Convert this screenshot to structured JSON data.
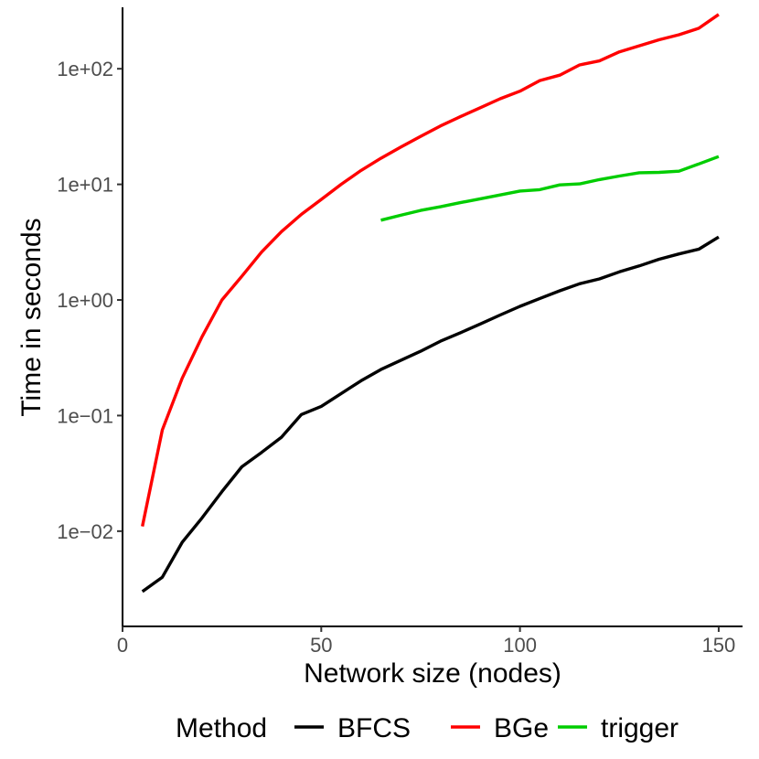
{
  "chart_data": {
    "type": "line",
    "xlabel": "Network size (nodes)",
    "ylabel": "Time in seconds",
    "xlim": [
      0,
      156
    ],
    "ylim": [
      0.0015,
      340
    ],
    "y_scale": "log10",
    "x_ticks": [
      0,
      50,
      100,
      150
    ],
    "x_tick_labels": [
      "0",
      "50",
      "100",
      "150"
    ],
    "y_ticks": [
      0.01,
      0.1,
      1,
      10,
      100
    ],
    "y_tick_labels": [
      "1e−02",
      "1e−01",
      "1e+00",
      "1e+01",
      "1e+02"
    ],
    "grid": false,
    "legend": {
      "title": "Method",
      "position": "bottom",
      "entries": [
        "BFCS",
        "BGe",
        "trigger"
      ]
    },
    "series": [
      {
        "name": "BFCS",
        "color": "#000000",
        "x": [
          5,
          10,
          15,
          20,
          25,
          30,
          35,
          40,
          45,
          50,
          55,
          60,
          65,
          70,
          75,
          80,
          85,
          90,
          95,
          100,
          105,
          110,
          115,
          120,
          125,
          130,
          135,
          140,
          145,
          150
        ],
        "y": [
          0.003,
          0.004,
          0.008,
          0.013,
          0.022,
          0.036,
          0.048,
          0.065,
          0.102,
          0.12,
          0.155,
          0.2,
          0.25,
          0.3,
          0.36,
          0.44,
          0.52,
          0.62,
          0.74,
          0.88,
          1.03,
          1.2,
          1.38,
          1.52,
          1.75,
          1.97,
          2.25,
          2.5,
          2.75,
          3.5
        ]
      },
      {
        "name": "BGe",
        "color": "#ff0000",
        "x": [
          5,
          10,
          15,
          20,
          25,
          30,
          35,
          40,
          45,
          50,
          55,
          60,
          65,
          70,
          75,
          80,
          85,
          90,
          95,
          100,
          105,
          110,
          115,
          120,
          125,
          130,
          135,
          140,
          145,
          150
        ],
        "y": [
          0.011,
          0.075,
          0.21,
          0.48,
          1.0,
          1.6,
          2.6,
          3.9,
          5.5,
          7.4,
          10.0,
          13.2,
          16.8,
          21.0,
          26.0,
          32.0,
          38.5,
          46.0,
          55.0,
          64.0,
          79.0,
          88.0,
          108.0,
          117.0,
          140.0,
          158.0,
          178.0,
          197.0,
          224.0,
          295.0
        ]
      },
      {
        "name": "trigger",
        "color": "#00cd00",
        "x": [
          65,
          70,
          75,
          80,
          85,
          90,
          95,
          100,
          105,
          110,
          115,
          120,
          125,
          130,
          135,
          140,
          145,
          150
        ],
        "y": [
          4.9,
          5.4,
          5.95,
          6.4,
          6.95,
          7.5,
          8.1,
          8.75,
          9.0,
          9.9,
          10.1,
          11.0,
          11.8,
          12.6,
          12.7,
          13.0,
          15.0,
          17.4
        ]
      }
    ]
  }
}
